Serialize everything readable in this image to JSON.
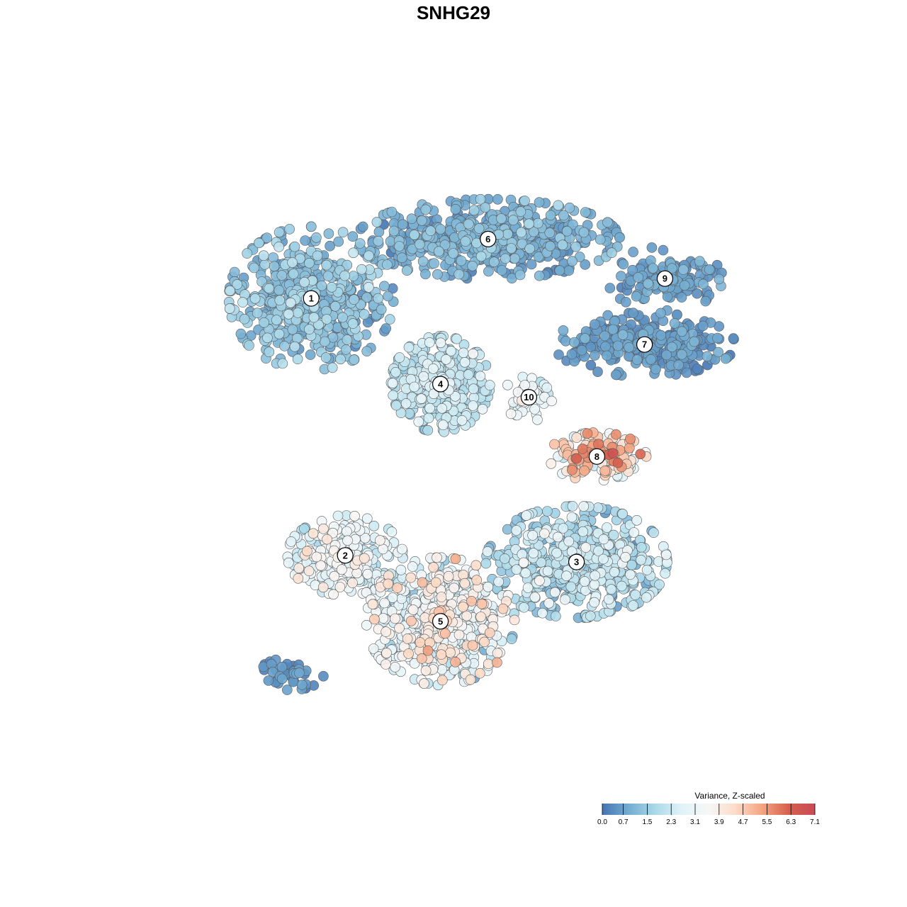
{
  "chart_data": {
    "type": "scatter",
    "title": "SNHG29",
    "xlabel": "",
    "ylabel": "",
    "grid": false,
    "legend": {
      "title": "Variance, Z-scaled",
      "placement": "bottom-right",
      "range": [
        0.0,
        7.1
      ],
      "ticks": [
        "0.0",
        "0.7",
        "1.5",
        "2.3",
        "3.1",
        "3.9",
        "4.7",
        "5.5",
        "6.3",
        "7.1"
      ],
      "colors": [
        "#4575b4",
        "#74add1",
        "#abd9e9",
        "#e0f3f8",
        "#f7f7f7",
        "#fddbc7",
        "#f4a582",
        "#d6604d",
        "#c94a55"
      ]
    },
    "clusters": [
      {
        "label": "1",
        "center": [
          0.27,
          0.73
        ],
        "spread": [
          0.1,
          0.09
        ],
        "n": 520,
        "mean": 1.2,
        "sd": 0.6
      },
      {
        "label": "6",
        "center": [
          0.53,
          0.82
        ],
        "spread": [
          0.16,
          0.05
        ],
        "n": 560,
        "mean": 0.9,
        "sd": 0.5
      },
      {
        "label": "9",
        "center": [
          0.79,
          0.76
        ],
        "spread": [
          0.07,
          0.04
        ],
        "n": 150,
        "mean": 0.6,
        "sd": 0.4
      },
      {
        "label": "7",
        "center": [
          0.76,
          0.66
        ],
        "spread": [
          0.11,
          0.04
        ],
        "n": 300,
        "mean": 0.5,
        "sd": 0.4
      },
      {
        "label": "4",
        "center": [
          0.46,
          0.6
        ],
        "spread": [
          0.06,
          0.06
        ],
        "n": 380,
        "mean": 2.0,
        "sd": 0.6
      },
      {
        "label": "10",
        "center": [
          0.59,
          0.58
        ],
        "spread": [
          0.03,
          0.03
        ],
        "n": 55,
        "mean": 2.9,
        "sd": 0.6
      },
      {
        "label": "8",
        "center": [
          0.69,
          0.49
        ],
        "spread": [
          0.06,
          0.03
        ],
        "n": 160,
        "mean": 4.2,
        "sd": 1.5
      },
      {
        "label": "2",
        "center": [
          0.32,
          0.34
        ],
        "spread": [
          0.07,
          0.05
        ],
        "n": 260,
        "mean": 2.8,
        "sd": 0.9
      },
      {
        "label": "3",
        "center": [
          0.66,
          0.33
        ],
        "spread": [
          0.11,
          0.07
        ],
        "n": 520,
        "mean": 1.9,
        "sd": 0.9
      },
      {
        "label": "5",
        "center": [
          0.46,
          0.24
        ],
        "spread": [
          0.09,
          0.08
        ],
        "n": 560,
        "mean": 3.0,
        "sd": 1.2
      },
      {
        "label": "",
        "center": [
          0.24,
          0.16
        ],
        "spread": [
          0.04,
          0.02
        ],
        "n": 45,
        "mean": 0.4,
        "sd": 0.3
      }
    ]
  }
}
